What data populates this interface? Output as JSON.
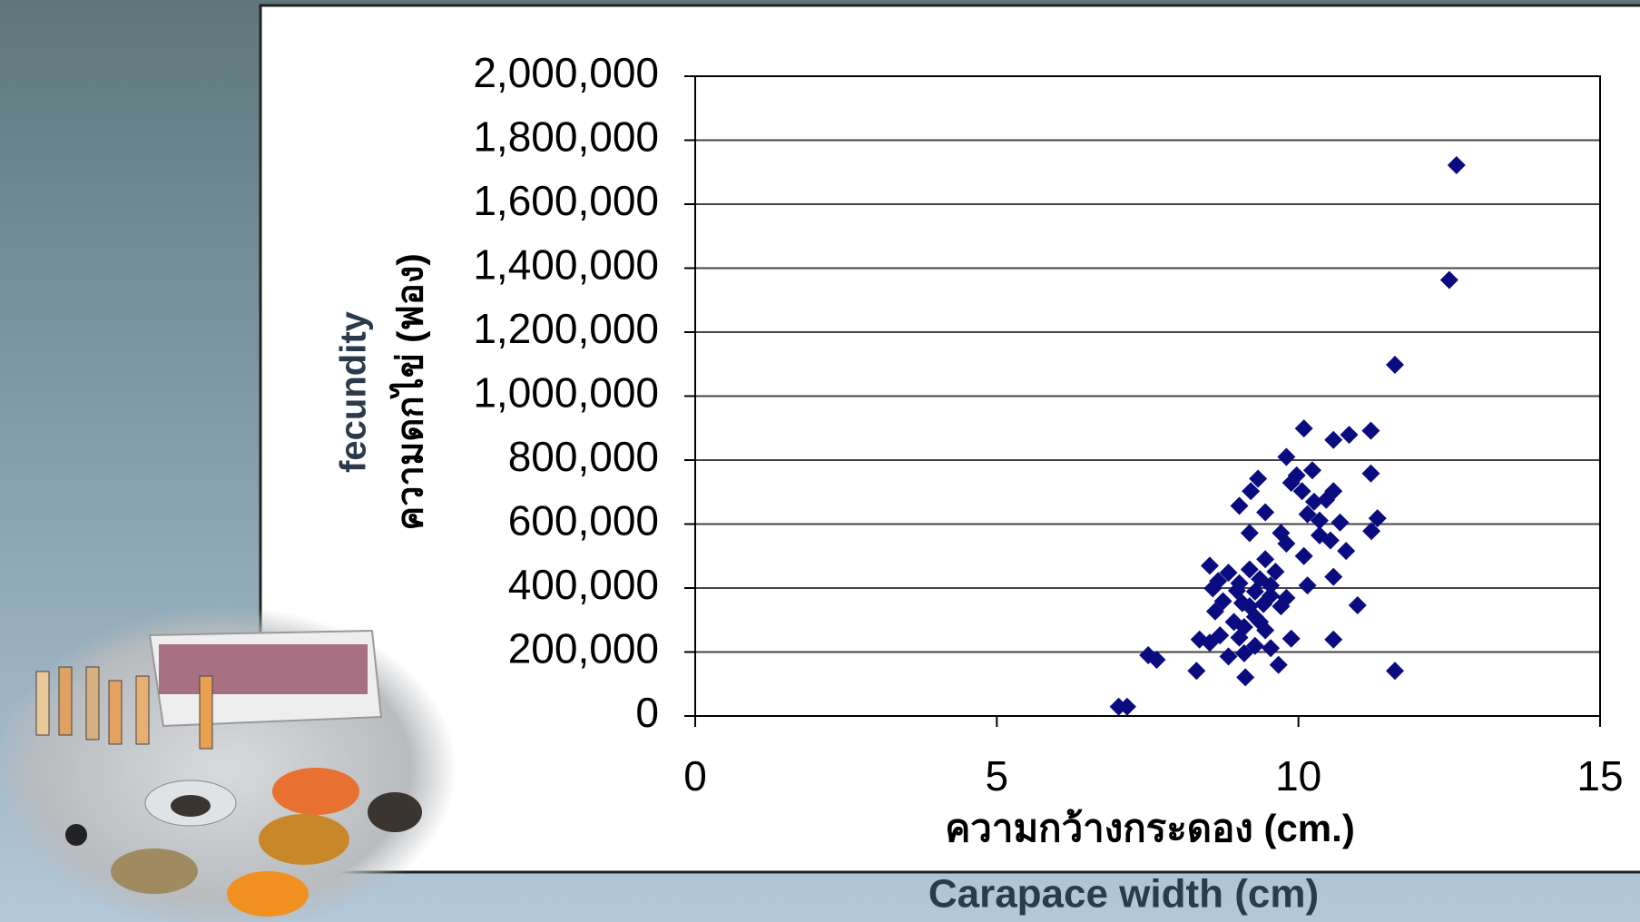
{
  "chart_data": {
    "type": "scatter",
    "xlabel": "ความกว้างกระดอง (cm.)",
    "xlabel_en": "Carapace width (cm)",
    "ylabel": [
      "fecundity",
      "ความดกไข่ (ฟอง)"
    ],
    "color": "#0b0b80",
    "grid": true,
    "xlim": [
      0,
      15
    ],
    "xticks": [
      0,
      5,
      10,
      15
    ],
    "ylim": [
      0,
      2000000
    ],
    "yticks": [
      0,
      {
        "value": 200000,
        "label": "200,000"
      },
      {
        "value": 400000,
        "label": "400,000"
      },
      {
        "value": 600000,
        "label": "600,000"
      },
      {
        "value": 800000,
        "label": "800,000"
      },
      {
        "value": 1000000,
        "label": "1,000,000"
      },
      {
        "value": 1200000,
        "label": "1,200,000"
      },
      {
        "value": 1400000,
        "label": "1,400,000"
      },
      {
        "value": 1600000,
        "label": "1,600,000"
      },
      {
        "value": 1800000,
        "label": "1,800,000"
      },
      {
        "value": 2000000,
        "label": "2,000,000"
      }
    ],
    "x": [
      12.62,
      12.5,
      11.6,
      10.09,
      11.2,
      10.84,
      10.58,
      9.8,
      11.2,
      10.23,
      9.97,
      9.33,
      9.88,
      9.21,
      10.58,
      10.46,
      9.02,
      9.45,
      10.15,
      10.35,
      10.69,
      11.31,
      11.21,
      9.71,
      10.35,
      10.53,
      9.8,
      10.79,
      10.09,
      9.45,
      8.53,
      9.19,
      8.84,
      9.62,
      10.58,
      8.67,
      9.36,
      9.02,
      10.15,
      8.58,
      9.28,
      9.54,
      9.8,
      8.75,
      9.07,
      9.42,
      10.98,
      8.62,
      9.28,
      8.93,
      9.1,
      9.45,
      8.7,
      8.36,
      8.53,
      9.88,
      10.58,
      9.28,
      9.1,
      7.51,
      7.65,
      8.84,
      9.67,
      8.31,
      11.6,
      9.12,
      7.02,
      7.16,
      9.19,
      9.54,
      8.98,
      9.71,
      9.19,
      9.36,
      9.54,
      9.02,
      10.26,
      10.06
    ],
    "values": [
      1722000,
      1363000,
      1098000,
      899000,
      892000,
      879000,
      863000,
      810000,
      758000,
      768000,
      752000,
      742000,
      729000,
      703000,
      703000,
      676000,
      657000,
      637000,
      631000,
      611000,
      605000,
      618000,
      578000,
      572000,
      565000,
      549000,
      539000,
      516000,
      500000,
      490000,
      470000,
      458000,
      448000,
      451000,
      435000,
      422000,
      428000,
      415000,
      408000,
      399000,
      389000,
      376000,
      369000,
      359000,
      353000,
      350000,
      346000,
      327000,
      310000,
      294000,
      278000,
      268000,
      252000,
      239000,
      229000,
      242000,
      239000,
      219000,
      196000,
      190000,
      176000,
      186000,
      160000,
      141000,
      141000,
      121000,
      29000,
      29000,
      572000,
      408000,
      392000,
      343000,
      343000,
      294000,
      212000,
      245000,
      670000,
      703000
    ]
  }
}
